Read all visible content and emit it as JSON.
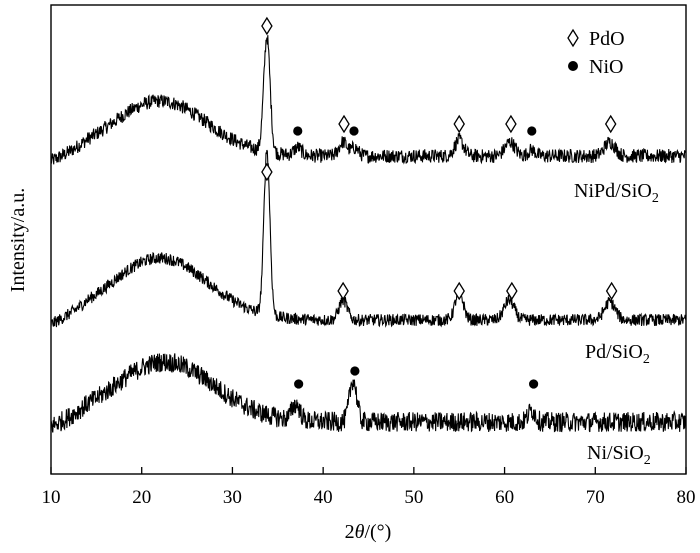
{
  "chart_data": {
    "type": "line",
    "xlabel_prefix": "2",
    "xlabel_theta": "θ",
    "xlabel_suffix": "/(°)",
    "ylabel": "Intensity/a.u.",
    "xlim": [
      10,
      80
    ],
    "x_ticks": [
      "10",
      "20",
      "30",
      "40",
      "50",
      "60",
      "70",
      "80"
    ],
    "legend": [
      {
        "symbol": "diamond",
        "label": "PdO"
      },
      {
        "symbol": "dot",
        "label": "NiO"
      }
    ],
    "series": [
      {
        "name": "NiPd/SiO2",
        "label_main": "NiPd/SiO",
        "label_sub": "2",
        "peaks_pdo": [
          33.8,
          42.3,
          55.0,
          60.7,
          71.7
        ],
        "peaks_nio": [
          37.2,
          43.4,
          63.0
        ]
      },
      {
        "name": "Pd/SiO2",
        "label_main": "Pd/SiO",
        "label_sub": "2",
        "peaks_pdo": [
          33.8,
          42.2,
          55.0,
          60.8,
          71.8
        ],
        "peaks_nio": []
      },
      {
        "name": "Ni/SiO2",
        "label_main": "Ni/SiO",
        "label_sub": "2",
        "peaks_pdo": [],
        "peaks_nio": [
          37.3,
          43.5,
          63.2
        ]
      }
    ]
  }
}
